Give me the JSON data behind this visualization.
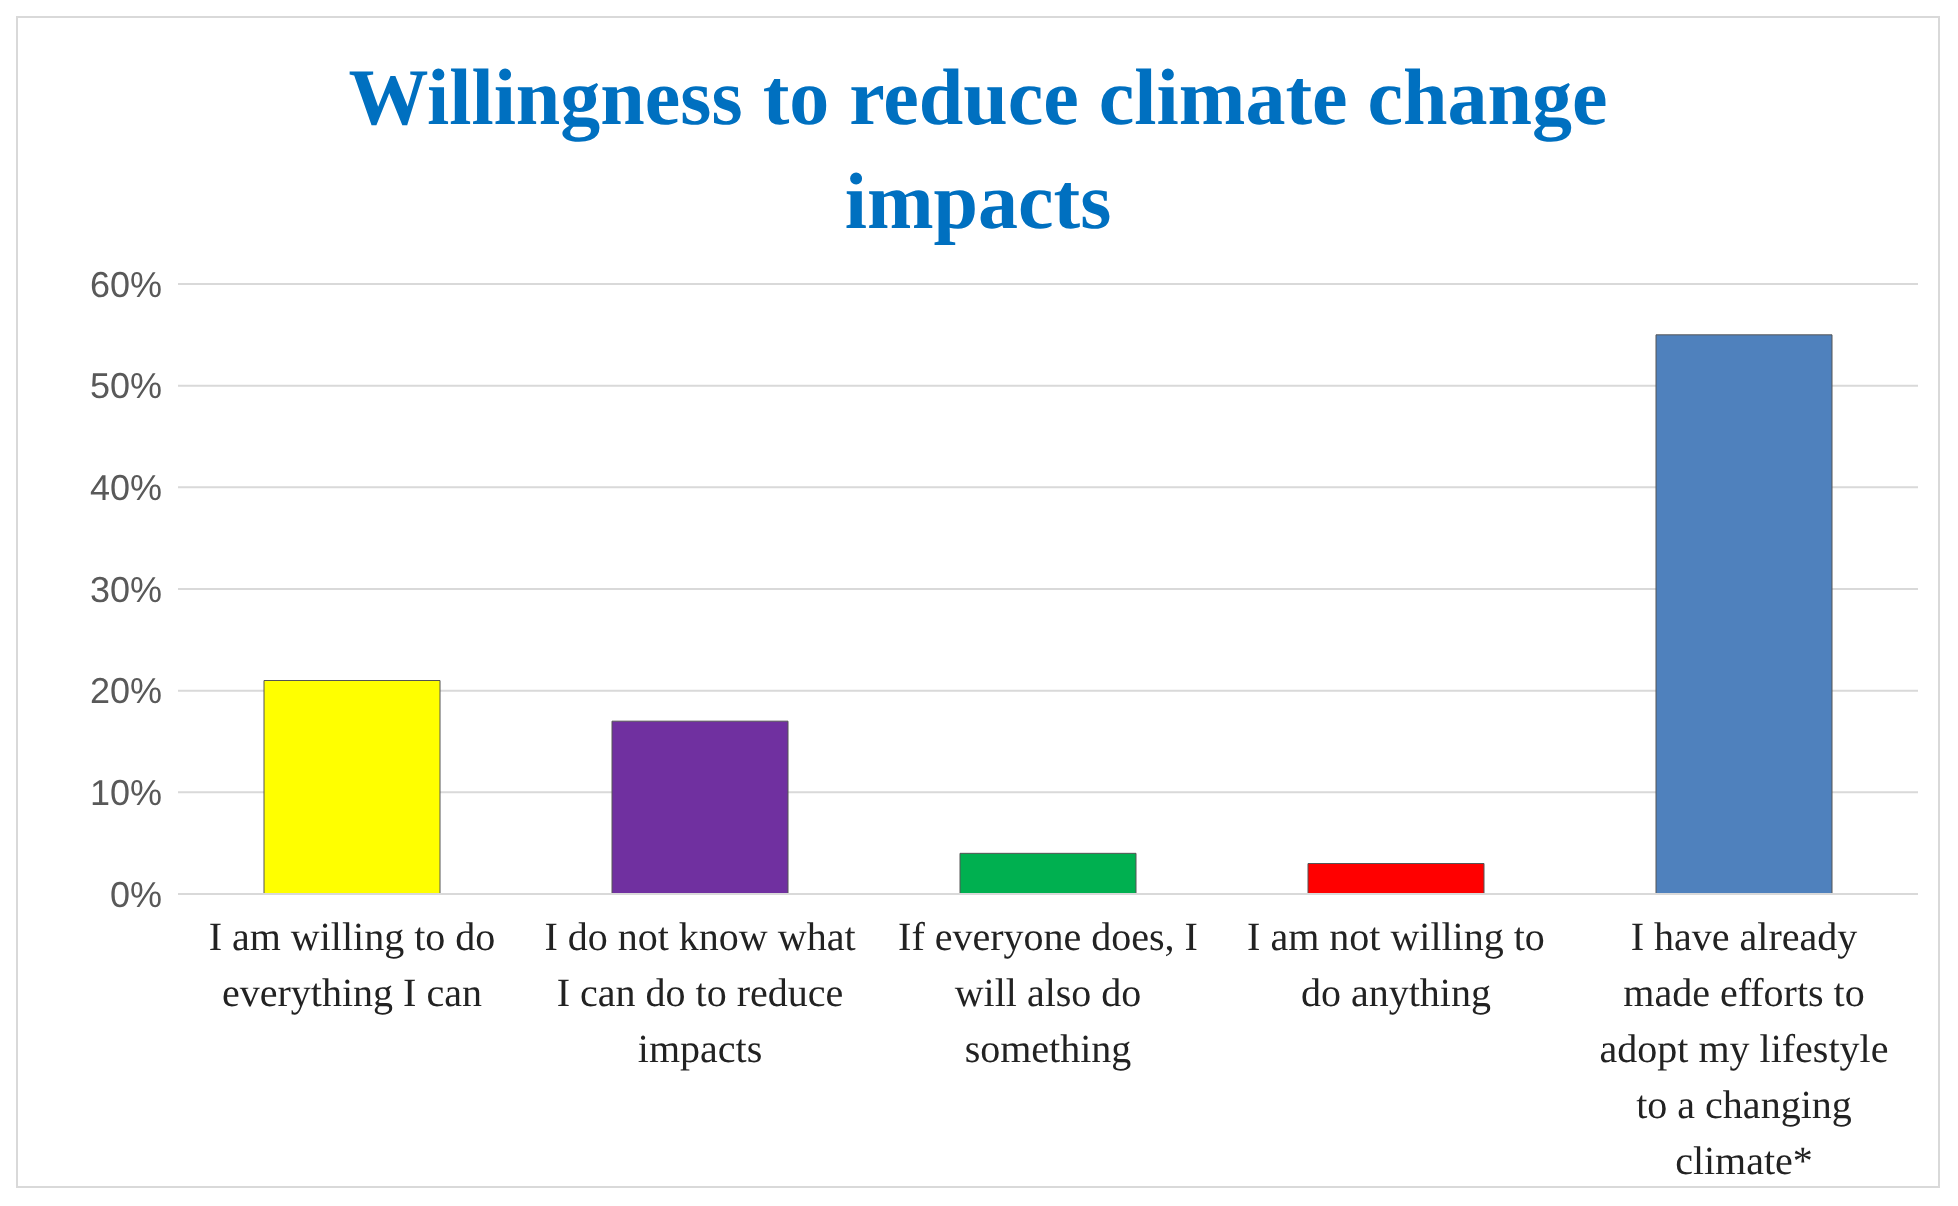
{
  "chart_data": {
    "type": "bar",
    "title": "Willingness to reduce climate change impacts",
    "categories": [
      "I am willing to do everything I can",
      "I do not know what I can do to reduce impacts",
      "If everyone does, I will also do something",
      "I am not willing to do anything",
      "I have already made efforts to adopt my lifestyle to a changing climate*"
    ],
    "values": [
      21,
      17,
      4,
      3,
      55
    ],
    "colors": [
      "#ffff00",
      "#7030a0",
      "#00b050",
      "#ff0000",
      "#4f81bd"
    ],
    "ylim": [
      0,
      60
    ],
    "yticks": [
      {
        "value": 0,
        "label": "0%"
      },
      {
        "value": 10,
        "label": "10%"
      },
      {
        "value": 20,
        "label": "20%"
      },
      {
        "value": 30,
        "label": "30%"
      },
      {
        "value": 40,
        "label": "40%"
      },
      {
        "value": 50,
        "label": "50%"
      },
      {
        "value": 60,
        "label": "60%"
      }
    ],
    "grid": "y",
    "legend": false
  }
}
